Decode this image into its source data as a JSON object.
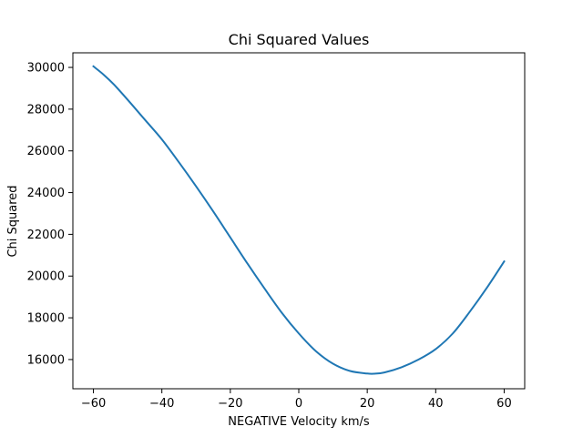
{
  "chart_data": {
    "type": "line",
    "title": "Chi Squared Values",
    "xlabel": "NEGATIVE Velocity km/s",
    "ylabel": "Chi Squared",
    "xlim": [
      -66,
      66
    ],
    "ylim": [
      14600,
      30700
    ],
    "xticks": [
      -60,
      -40,
      -20,
      0,
      20,
      40,
      60
    ],
    "yticks": [
      16000,
      18000,
      20000,
      22000,
      24000,
      26000,
      28000,
      30000
    ],
    "xtick_labels": [
      "−60",
      "−40",
      "−20",
      "0",
      "20",
      "40",
      "60"
    ],
    "ytick_labels": [
      "16000",
      "18000",
      "20000",
      "22000",
      "24000",
      "26000",
      "28000",
      "30000"
    ],
    "grid": false,
    "series": [
      {
        "color": "#1f77b4",
        "x": [
          -60,
          -57,
          -54,
          -50,
          -45,
          -40,
          -35,
          -30,
          -25,
          -20,
          -15,
          -10,
          -5,
          0,
          5,
          10,
          15,
          20,
          22,
          25,
          30,
          35,
          40,
          45,
          50,
          55,
          60
        ],
        "y": [
          30050,
          29650,
          29180,
          28450,
          27500,
          26550,
          25450,
          24300,
          23100,
          21850,
          20600,
          19400,
          18250,
          17250,
          16400,
          15800,
          15450,
          15330,
          15320,
          15380,
          15630,
          16000,
          16500,
          17250,
          18300,
          19450,
          20700
        ]
      }
    ]
  }
}
